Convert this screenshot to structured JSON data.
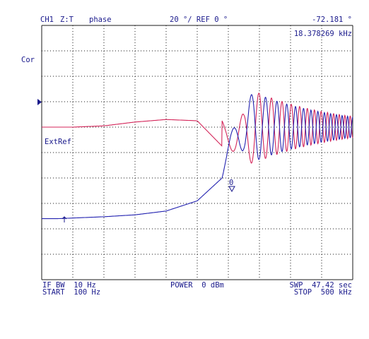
{
  "header": {
    "channel": "CH1",
    "parameter": "Z:T",
    "format": "phase",
    "scale": "20 °/ REF 0 °",
    "marker_value": "-72.181 °",
    "marker_stimulus": "18.378269 kHz"
  },
  "annotations": {
    "correction": "Cor",
    "ext_ref": "ExtRef",
    "marker_number": "0"
  },
  "footer": {
    "if_bw": "IF BW  10 Hz",
    "start": "START  100 Hz",
    "power": "POWER  0 dBm",
    "sweep_time": "SWP  47.42 sec",
    "stop": "STOP  500 kHz"
  },
  "colors": {
    "grid": "#1a1a1a",
    "text": "#1a1a8c",
    "trace_phase": "#2222b0",
    "trace_mem": "#d4265a"
  },
  "chart_data": {
    "type": "line",
    "x_axis": {
      "scale": "linear",
      "start_hz": 100,
      "stop_hz": 500000,
      "divisions": 10
    },
    "y_axis": {
      "units": "deg",
      "per_division": 20,
      "reference": 0,
      "divisions": 10,
      "ref_division_from_top": 4
    },
    "series": [
      {
        "color": "#d4265a",
        "x": [
          100,
          25000,
          50000,
          100000,
          150000,
          200000,
          250000,
          290000,
          340000,
          375000,
          410000,
          440000,
          470000,
          500000
        ],
        "y": [
          0,
          0,
          0,
          1,
          4,
          6,
          5,
          -15,
          -30,
          0,
          10,
          -8,
          5,
          0
        ]
      },
      {
        "color": "#2222b0",
        "x": [
          100,
          25000,
          50000,
          100000,
          150000,
          200000,
          250000,
          290000,
          340000,
          375000,
          410000,
          440000,
          470000,
          500000
        ],
        "y": [
          -72,
          -72,
          -71.5,
          -70.5,
          -69,
          -66,
          -58,
          -40,
          5,
          5,
          -18,
          8,
          -5,
          0
        ]
      }
    ],
    "marker": {
      "label": "0",
      "x_khz": 18.378269,
      "y_deg": -72.181
    }
  }
}
